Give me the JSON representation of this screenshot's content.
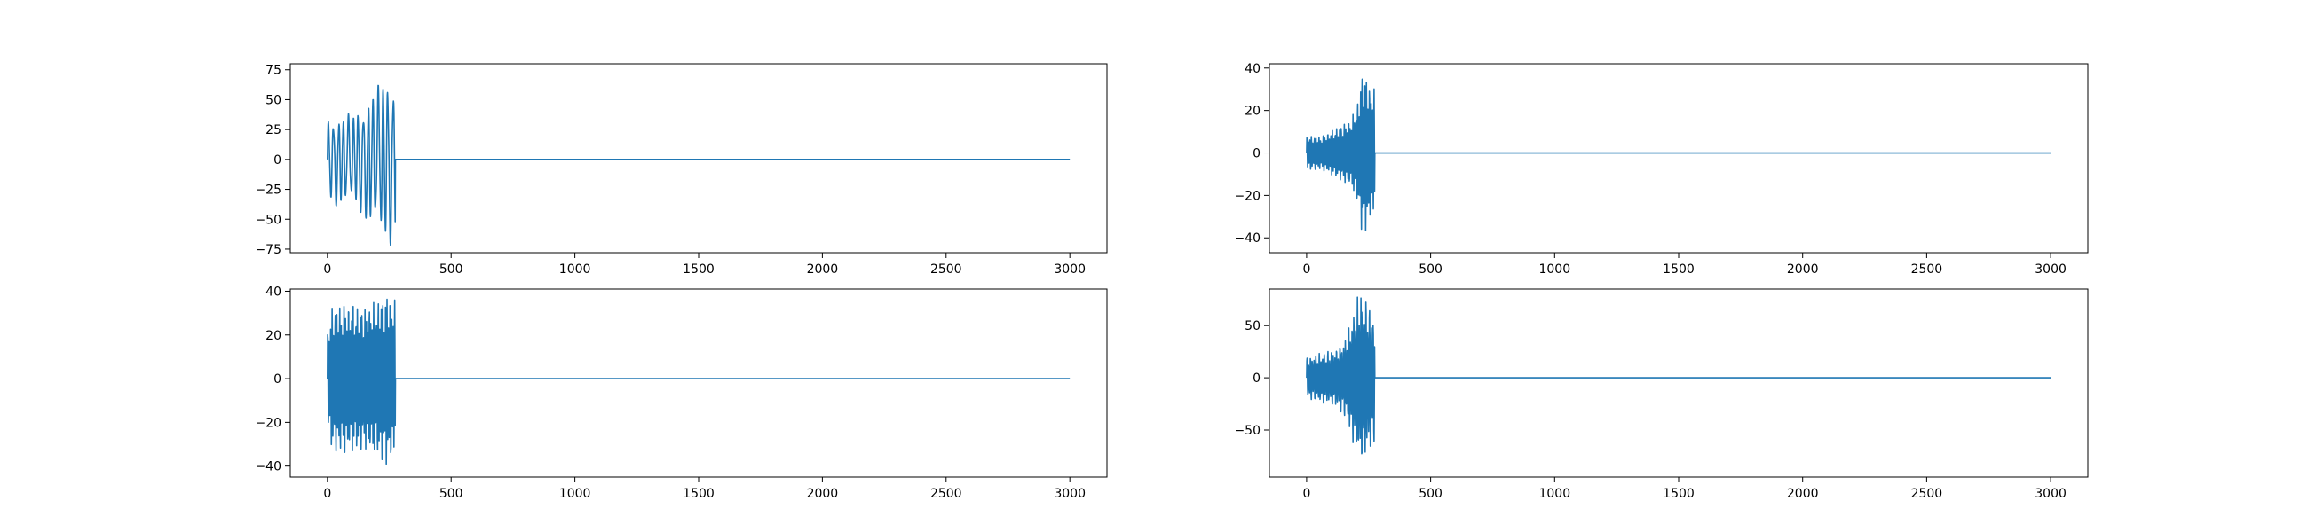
{
  "chart_data": [
    {
      "type": "line",
      "title": "",
      "xlabel": "",
      "ylabel": "",
      "xlim": [
        -150,
        3150
      ],
      "ylim": [
        -78,
        80
      ],
      "xticks": [
        0,
        500,
        1000,
        1500,
        2000,
        2500,
        3000
      ],
      "yticks": [
        -75,
        -50,
        -25,
        0,
        25,
        50,
        75
      ],
      "grid": false,
      "series": [
        {
          "color": "#1f77b4",
          "signal": {
            "length": 3000,
            "active_until": 275,
            "envelope": [
              [
                0,
                36
              ],
              [
                40,
                40
              ],
              [
                100,
                38
              ],
              [
                150,
                52
              ],
              [
                200,
                62
              ],
              [
                240,
                74
              ],
              [
                275,
                70
              ]
            ],
            "period": 20,
            "trailing_value": 0
          }
        }
      ]
    },
    {
      "type": "line",
      "title": "",
      "xlabel": "",
      "ylabel": "",
      "xlim": [
        -150,
        3150
      ],
      "ylim": [
        -47,
        42
      ],
      "xticks": [
        0,
        500,
        1000,
        1500,
        2000,
        2500,
        3000
      ],
      "yticks": [
        -40,
        -20,
        0,
        20,
        40
      ],
      "grid": false,
      "series": [
        {
          "color": "#1f77b4",
          "signal": {
            "length": 3000,
            "active_until": 275,
            "envelope": [
              [
                0,
                8
              ],
              [
                60,
                8
              ],
              [
                120,
                12
              ],
              [
                180,
                16
              ],
              [
                210,
                26
              ],
              [
                225,
                41
              ],
              [
                250,
                34
              ],
              [
                275,
                30
              ]
            ],
            "period": 6,
            "trailing_value": 0
          }
        }
      ]
    },
    {
      "type": "line",
      "title": "",
      "xlabel": "",
      "ylabel": "",
      "xlim": [
        -150,
        3150
      ],
      "ylim": [
        -45,
        41
      ],
      "xticks": [
        0,
        500,
        1000,
        1500,
        2000,
        2500,
        3000
      ],
      "yticks": [
        -40,
        -20,
        0,
        20,
        40
      ],
      "grid": false,
      "series": [
        {
          "color": "#1f77b4",
          "signal": {
            "length": 3000,
            "active_until": 275,
            "envelope": [
              [
                0,
                22
              ],
              [
                20,
                34
              ],
              [
                80,
                35
              ],
              [
                150,
                33
              ],
              [
                200,
                36
              ],
              [
                240,
                40
              ],
              [
                275,
                36
              ]
            ],
            "period": 6,
            "trailing_value": 0
          }
        }
      ]
    },
    {
      "type": "line",
      "title": "",
      "xlabel": "",
      "ylabel": "",
      "xlim": [
        -150,
        3150
      ],
      "ylim": [
        -95,
        85
      ],
      "xticks": [
        0,
        500,
        1000,
        1500,
        2000,
        2500,
        3000
      ],
      "yticks": [
        -50,
        0,
        50
      ],
      "grid": false,
      "series": [
        {
          "color": "#1f77b4",
          "signal": {
            "length": 3000,
            "active_until": 275,
            "envelope": [
              [
                0,
                20
              ],
              [
                60,
                24
              ],
              [
                120,
                28
              ],
              [
                160,
                40
              ],
              [
                195,
                70
              ],
              [
                215,
                85
              ],
              [
                245,
                74
              ],
              [
                275,
                62
              ]
            ],
            "period": 7,
            "trailing_value": 0
          }
        }
      ]
    }
  ]
}
